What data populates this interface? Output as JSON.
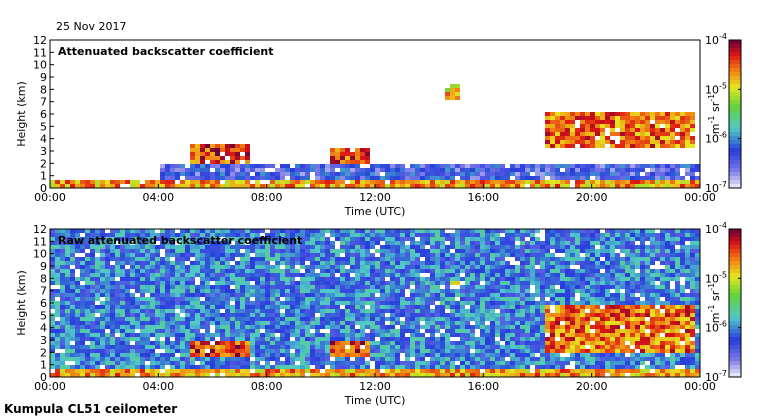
{
  "figure": {
    "date": "25 Nov 2017",
    "instrument": "Kumpula CL51 ceilometer"
  },
  "chart_data": [
    {
      "type": "heatmap",
      "title": "Attenuated backscatter coefficient",
      "xlabel": "Time (UTC)",
      "ylabel": "Height (km)",
      "xlim": [
        0,
        24
      ],
      "ylim": [
        0,
        12
      ],
      "x_tick_labels": [
        "00:00",
        "04:00",
        "08:00",
        "12:00",
        "16:00",
        "20:00",
        "00:00"
      ],
      "y_tick_labels": [
        "0",
        "1",
        "2",
        "3",
        "4",
        "5",
        "6",
        "7",
        "8",
        "9",
        "10",
        "11",
        "12"
      ],
      "colorbar": {
        "scale": "log",
        "range": [
          1e-07,
          0.0001
        ],
        "tick_labels": [
          "10-7",
          "10-6",
          "10-5",
          "10-4"
        ],
        "unit_label": "m-1 sr-1"
      },
      "layers": [
        {
          "name": "surface layer",
          "t_start": 0,
          "t_end": 24,
          "h_bottom": 0,
          "h_top": 0.5,
          "level": 0.75
        },
        {
          "name": "boundary layer",
          "t_start": 4,
          "t_end": 24,
          "h_bottom": 0.4,
          "h_top": 2,
          "level": 0.2
        },
        {
          "name": "cloud 05-07",
          "t_start": 5.2,
          "t_end": 7.3,
          "h_bottom": 2,
          "h_top": 3.6,
          "level": 0.85
        },
        {
          "name": "cloud 10-12",
          "t_start": 10.3,
          "t_end": 11.9,
          "h_bottom": 2,
          "h_top": 3.3,
          "level": 0.85
        },
        {
          "name": "high cloud 15",
          "t_start": 14.5,
          "t_end": 15.2,
          "h_bottom": 7.1,
          "h_top": 8.4,
          "level": 0.7
        },
        {
          "name": "frontal cloud",
          "t_start": 18.2,
          "t_end": 23.9,
          "h_bottom": 3.2,
          "h_top": 6.1,
          "level": 0.8
        }
      ]
    },
    {
      "type": "heatmap",
      "title": "Raw attenuated backscatter coefficient",
      "xlabel": "Time (UTC)",
      "ylabel": "Height (km)",
      "xlim": [
        0,
        24
      ],
      "ylim": [
        0,
        12
      ],
      "x_tick_labels": [
        "00:00",
        "04:00",
        "08:00",
        "12:00",
        "16:00",
        "20:00",
        "00:00"
      ],
      "y_tick_labels": [
        "0",
        "1",
        "2",
        "3",
        "4",
        "5",
        "6",
        "7",
        "8",
        "9",
        "10",
        "11",
        "12"
      ],
      "colorbar": {
        "scale": "log",
        "range": [
          1e-07,
          0.0001
        ],
        "tick_labels": [
          "10-7",
          "10-6",
          "10-5",
          "10-4"
        ],
        "unit_label": "m-1 sr-1"
      },
      "layers": [
        {
          "name": "noise background",
          "t_start": 0,
          "t_end": 24,
          "h_bottom": 0,
          "h_top": 12,
          "level": 0.3
        },
        {
          "name": "surface layer",
          "t_start": 0,
          "t_end": 24,
          "h_bottom": 0,
          "h_top": 0.5,
          "level": 0.75
        },
        {
          "name": "cloud 05-07",
          "t_start": 5.2,
          "t_end": 7.3,
          "h_bottom": 1.5,
          "h_top": 3,
          "level": 0.85
        },
        {
          "name": "cloud 10-12",
          "t_start": 10.3,
          "t_end": 11.9,
          "h_bottom": 1.5,
          "h_top": 2.8,
          "level": 0.85
        },
        {
          "name": "high cloud 15",
          "t_start": 14.8,
          "t_end": 15.2,
          "h_bottom": 7.1,
          "h_top": 7.9,
          "level": 0.6
        },
        {
          "name": "frontal cloud",
          "t_start": 18.2,
          "t_end": 23.9,
          "h_bottom": 2,
          "h_top": 5.8,
          "level": 0.8
        }
      ]
    }
  ]
}
